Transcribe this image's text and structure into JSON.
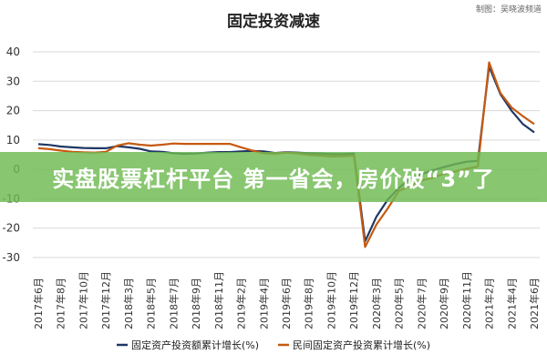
{
  "watermark": "制图：吴晓波频道",
  "banner": {
    "text": "实盘股票杠杆平台 第一省会，房价破“3”了"
  },
  "colors": {
    "series_1": "#1f3864",
    "series_2": "#c55a11",
    "grid": "#d9d9d9",
    "banner": "#6eb950"
  },
  "chart_data": {
    "type": "line",
    "title": "固定投资减速",
    "xlabel": "",
    "ylabel": "",
    "ylim": [
      -30,
      40
    ],
    "yticks": [
      -30,
      -20,
      -10,
      0,
      10,
      20,
      30,
      40
    ],
    "grid": "horizontal",
    "legend_position": "bottom",
    "x": [
      "2017年6月",
      "2017年7月",
      "2017年8月",
      "2017年9月",
      "2017年10月",
      "2017年11月",
      "2017年12月",
      "2018年2月",
      "2018年3月",
      "2018年4月",
      "2018年5月",
      "2018年6月",
      "2018年7月",
      "2018年8月",
      "2018年9月",
      "2018年10月",
      "2018年11月",
      "2018年12月",
      "2019年2月",
      "2019年3月",
      "2019年4月",
      "2019年5月",
      "2019年6月",
      "2019年7月",
      "2019年8月",
      "2019年9月",
      "2019年10月",
      "2019年11月",
      "2019年12月",
      "2020年2月",
      "2020年3月",
      "2020年4月",
      "2020年5月",
      "2020年6月",
      "2020年7月",
      "2020年8月",
      "2020年9月",
      "2020年10月",
      "2020年11月",
      "2020年12月",
      "2021年2月",
      "2021年3月",
      "2021年4月",
      "2021年5月",
      "2021年6月"
    ],
    "x_tick_labels": [
      "2017年6月",
      "2017年8月",
      "2017年10月",
      "2017年12月",
      "2018年3月",
      "2018年5月",
      "2018年7月",
      "2018年9月",
      "2018年11月",
      "2019年2月",
      "2019年4月",
      "2019年6月",
      "2019年8月",
      "2019年10月",
      "2019年12月",
      "2020年3月",
      "2020年5月",
      "2020年7月",
      "2020年9月",
      "2020年11月",
      "2021年2月",
      "2021年4月",
      "2021年6月"
    ],
    "series": [
      {
        "name": "固定资产投资额累计增长(%)",
        "color": "#1f3864",
        "values": [
          8.6,
          8.3,
          7.8,
          7.5,
          7.3,
          7.2,
          7.2,
          7.9,
          7.5,
          7.0,
          6.1,
          6.0,
          5.5,
          5.3,
          5.4,
          5.7,
          5.9,
          5.9,
          6.1,
          6.3,
          6.1,
          5.6,
          5.8,
          5.7,
          5.5,
          5.4,
          5.2,
          5.2,
          5.4,
          -24.5,
          -16.1,
          -10.3,
          -6.3,
          -3.1,
          -1.6,
          -0.3,
          0.8,
          1.8,
          2.6,
          2.9,
          35.0,
          25.6,
          19.9,
          15.4,
          12.6
        ]
      },
      {
        "name": "民间固定资产投资累计增长(%)",
        "color": "#c55a11",
        "values": [
          7.2,
          6.9,
          6.4,
          6.0,
          5.8,
          5.7,
          6.0,
          8.1,
          8.9,
          8.4,
          8.1,
          8.4,
          8.8,
          8.7,
          8.7,
          8.7,
          8.7,
          8.7,
          7.5,
          6.4,
          5.5,
          5.3,
          5.7,
          5.4,
          4.9,
          4.7,
          4.4,
          4.5,
          4.7,
          -26.4,
          -18.8,
          -13.3,
          -7.3,
          -5.7,
          -3.8,
          -2.8,
          -1.5,
          -0.7,
          0.2,
          1.0,
          36.4,
          26.0,
          21.0,
          18.1,
          15.4
        ]
      }
    ]
  }
}
